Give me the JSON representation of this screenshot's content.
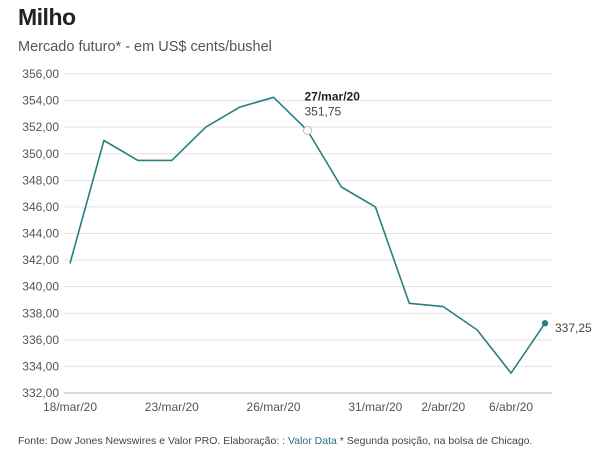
{
  "header": {
    "title": "Milho",
    "subtitle": "Mercado futuro* - em US$ cents/bushel"
  },
  "footer": {
    "source_prefix": "Fonte: Dow Jones Newswires e Valor PRO. Elaboração: : ",
    "source_link": "Valor Data",
    "source_suffix": " * Segunda posição, na bolsa de Chicago."
  },
  "colors": {
    "line": "#2a7f7f",
    "grid": "#e3e3e3",
    "axis": "#bbbbbb"
  },
  "chart_data": {
    "type": "line",
    "title": "Milho",
    "subtitle": "Mercado futuro* - em US$ cents/bushel",
    "xlabel": "",
    "ylabel": "",
    "ylim": [
      332,
      356
    ],
    "yticks": [
      332,
      334,
      336,
      338,
      340,
      342,
      344,
      346,
      348,
      350,
      352,
      354,
      356
    ],
    "ytick_labels": [
      "332,00",
      "334,00",
      "336,00",
      "338,00",
      "340,00",
      "342,00",
      "344,00",
      "346,00",
      "348,00",
      "350,00",
      "352,00",
      "354,00",
      "356,00"
    ],
    "x": [
      "18/mar/20",
      "19/mar/20",
      "20/mar/20",
      "23/mar/20",
      "24/mar/20",
      "25/mar/20",
      "26/mar/20",
      "27/mar/20",
      "30/mar/20",
      "31/mar/20",
      "1/abr/20",
      "2/abr/20",
      "3/abr/20",
      "6/abr/20",
      "7/abr/20"
    ],
    "values": [
      341.75,
      351.0,
      349.5,
      349.5,
      352.0,
      353.5,
      354.25,
      351.75,
      347.5,
      346.0,
      338.75,
      338.5,
      336.75,
      333.5,
      337.25
    ],
    "xtick_indices": [
      0,
      3,
      6,
      9,
      11,
      13
    ],
    "xtick_labels": [
      "18/mar/20",
      "23/mar/20",
      "26/mar/20",
      "31/mar/20",
      "2/abr/20",
      "6/abr/20"
    ],
    "annotation": {
      "index": 7,
      "date": "27/mar/20",
      "value": "351,75"
    },
    "last_label": {
      "index": 14,
      "value": "337,25"
    }
  }
}
